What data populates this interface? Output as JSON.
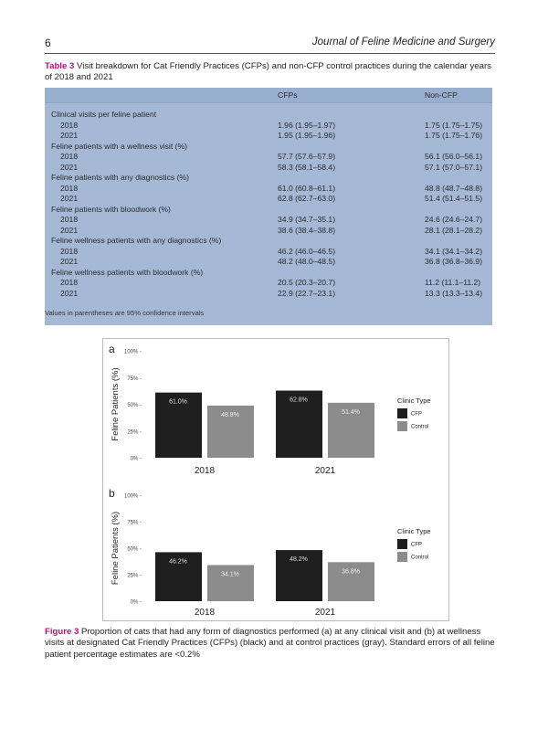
{
  "header": {
    "page_number": "6",
    "journal": "Journal of Feline Medicine and Surgery"
  },
  "table": {
    "label": "Table 3",
    "caption": " Visit breakdown for Cat Friendly Practices (CFPs) and non-CFP control practices during the calendar years of 2018 and 2021",
    "columns": [
      "",
      "CFPs",
      "Non-CFP"
    ],
    "rows": [
      {
        "label": "Clinical visits per feline patient",
        "sub": false,
        "cfp": "",
        "non": ""
      },
      {
        "label": "2018",
        "sub": true,
        "cfp": "1.96 (1.95–1.97)",
        "non": "1.75 (1.75–1.75)"
      },
      {
        "label": "2021",
        "sub": true,
        "cfp": "1.95 (1.95–1.96)",
        "non": "1.75 (1.75–1.76)"
      },
      {
        "label": "Feline patients with a wellness visit (%)",
        "sub": false,
        "cfp": "",
        "non": ""
      },
      {
        "label": "2018",
        "sub": true,
        "cfp": "57.7 (57.6–57.9)",
        "non": "56.1 (56.0–56.1)"
      },
      {
        "label": "2021",
        "sub": true,
        "cfp": "58.3 (58.1–58.4)",
        "non": "57.1 (57.0–57.1)"
      },
      {
        "label": "Feline patients with any diagnostics (%)",
        "sub": false,
        "cfp": "",
        "non": ""
      },
      {
        "label": "2018",
        "sub": true,
        "cfp": "61.0 (60.8–61.1)",
        "non": "48.8 (48.7–48.8)"
      },
      {
        "label": "2021",
        "sub": true,
        "cfp": "62.8 (62.7–63.0)",
        "non": "51.4 (51.4–51.5)"
      },
      {
        "label": "Feline patients with bloodwork (%)",
        "sub": false,
        "cfp": "",
        "non": ""
      },
      {
        "label": "2018",
        "sub": true,
        "cfp": "34.9 (34.7–35.1)",
        "non": "24.6 (24.6–24.7)"
      },
      {
        "label": "2021",
        "sub": true,
        "cfp": "38.6 (38.4–38.8)",
        "non": "28.1 (28.1–28.2)"
      },
      {
        "label": "Feline wellness patients with any diagnostics (%)",
        "sub": false,
        "cfp": "",
        "non": ""
      },
      {
        "label": "2018",
        "sub": true,
        "cfp": "46.2 (46.0–46.5)",
        "non": "34.1 (34.1–34.2)"
      },
      {
        "label": "2021",
        "sub": true,
        "cfp": "48.2 (48.0–48.5)",
        "non": "36.8 (36.8–36.9)"
      },
      {
        "label": "Feline wellness patients with bloodwork (%)",
        "sub": false,
        "cfp": "",
        "non": ""
      },
      {
        "label": "2018",
        "sub": true,
        "cfp": "20.5 (20.3–20.7)",
        "non": "11.2 (11.1–11.2)"
      },
      {
        "label": "2021",
        "sub": true,
        "cfp": "22.9 (22.7–23.1)",
        "non": "13.3 (13.3–13.4)"
      }
    ],
    "note": "Values in parentheses are 95% confidence intervals"
  },
  "figure": {
    "label": "Figure 3",
    "caption": " Proportion of cats that had any form of diagnostics performed (a) at any clinical visit and (b) at wellness visits at designated Cat Friendly Practices (CFPs) (black) and at control practices (gray). Standard errors of all feline patient percentage estimates are <0.2%"
  },
  "chart_data": [
    {
      "type": "bar",
      "panel": "a",
      "ylabel": "Feline Patients (%)",
      "ylim": [
        0,
        100
      ],
      "yticks": [
        "0% -",
        "25% -",
        "50% -",
        "75% -",
        "100% -"
      ],
      "categories": [
        "2018",
        "2021"
      ],
      "series": [
        {
          "name": "CFP",
          "color": "#1f1f1f",
          "values": [
            61.0,
            62.8
          ],
          "labels": [
            "61.0%",
            "62.8%"
          ]
        },
        {
          "name": "Control",
          "color": "#8c8c8c",
          "values": [
            48.8,
            51.4
          ],
          "labels": [
            "48.8%",
            "51.4%"
          ]
        }
      ],
      "legend": {
        "title": "Clinic Type",
        "position": "right"
      }
    },
    {
      "type": "bar",
      "panel": "b",
      "ylabel": "Feline Patients (%)",
      "ylim": [
        0,
        100
      ],
      "yticks": [
        "0% -",
        "25% -",
        "50% -",
        "75% -",
        "100% -"
      ],
      "categories": [
        "2018",
        "2021"
      ],
      "series": [
        {
          "name": "CFP",
          "color": "#1f1f1f",
          "values": [
            46.2,
            48.2
          ],
          "labels": [
            "46.2%",
            "48.2%"
          ]
        },
        {
          "name": "Control",
          "color": "#8c8c8c",
          "values": [
            34.1,
            36.8
          ],
          "labels": [
            "34.1%",
            "36.8%"
          ]
        }
      ],
      "legend": {
        "title": "Clinic Type",
        "position": "right"
      }
    }
  ]
}
